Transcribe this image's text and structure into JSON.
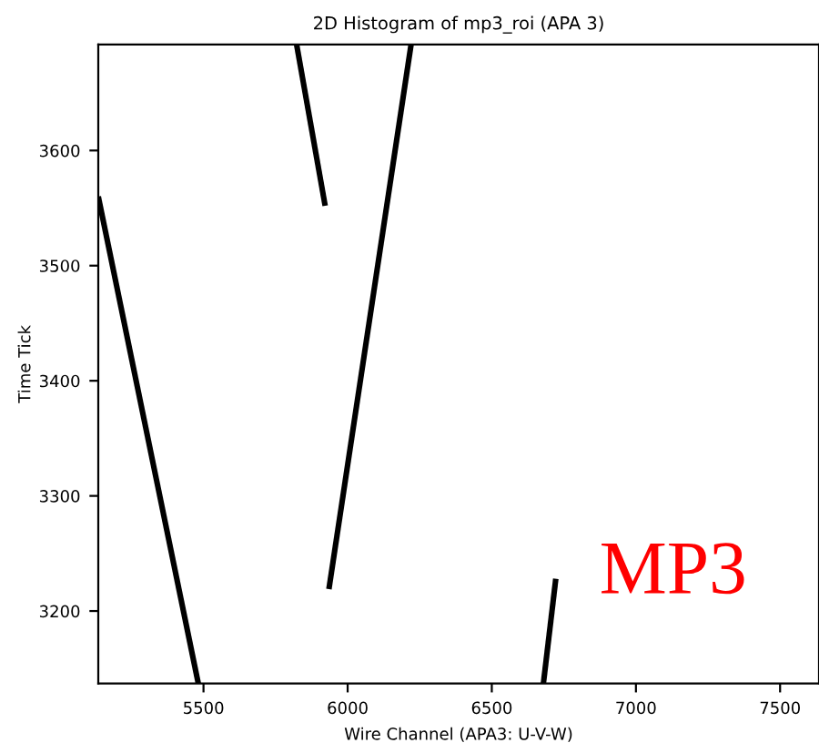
{
  "chart_data": {
    "type": "line",
    "title": "2D Histogram of mp3_roi (APA 3)",
    "xlabel": "Wire Channel (APA3: U-V-W)",
    "ylabel": "Time Tick",
    "series": [
      {
        "color": "#000000",
        "x": [
          5135,
          5482
        ],
        "values": [
          3560,
          3137
        ]
      },
      {
        "color": "#000000",
        "x": [
          5823,
          5922
        ],
        "values": [
          3692,
          3552
        ]
      },
      {
        "color": "#000000",
        "x": [
          6220,
          5935
        ],
        "values": [
          3692,
          3219
        ]
      },
      {
        "color": "#000000",
        "x": [
          6679,
          6722
        ],
        "values": [
          3137,
          3228
        ]
      }
    ],
    "xlim": [
      5135,
      7635
    ],
    "ylim": [
      3137,
      3692
    ],
    "xticks": [
      5500,
      6000,
      6500,
      7000,
      7500
    ],
    "yticks": [
      3200,
      3300,
      3400,
      3500,
      3600
    ],
    "grid": false,
    "marker": "none",
    "line_style": "solid",
    "annotations": [
      "MP3"
    ]
  }
}
